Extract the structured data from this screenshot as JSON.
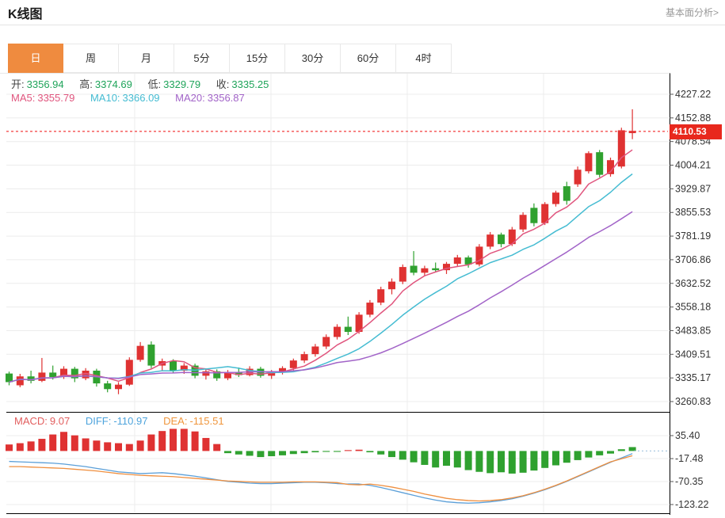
{
  "header": {
    "title": "K线图",
    "link": "基本面分析>"
  },
  "tabs": {
    "items": [
      {
        "label": "日",
        "active": true
      },
      {
        "label": "周",
        "active": false
      },
      {
        "label": "月",
        "active": false
      },
      {
        "label": "5分",
        "active": false
      },
      {
        "label": "15分",
        "active": false
      },
      {
        "label": "30分",
        "active": false
      },
      {
        "label": "60分",
        "active": false
      },
      {
        "label": "4时",
        "active": false
      }
    ]
  },
  "legend": {
    "ohlc": [
      {
        "label": "开:",
        "value": "3356.94"
      },
      {
        "label": "高:",
        "value": "3374.69"
      },
      {
        "label": "低:",
        "value": "3329.79"
      },
      {
        "label": "收:",
        "value": "3335.25"
      }
    ],
    "ma": [
      {
        "label": "MA5:",
        "value": "3355.79"
      },
      {
        "label": "MA10:",
        "value": "3366.09"
      },
      {
        "label": "MA20:",
        "value": "3356.87"
      }
    ],
    "macd": [
      {
        "label": "MACD:",
        "value": "9.07"
      },
      {
        "label": "DIFF:",
        "value": "-110.97"
      },
      {
        "label": "DEA:",
        "value": "-115.51"
      }
    ]
  },
  "colors": {
    "up": "#df3232",
    "down": "#2fa12f",
    "ma5": "#e0557e",
    "ma10": "#45bcd2",
    "ma20": "#a264c8",
    "diff": "#5b9fd8",
    "dea": "#ef8f3f",
    "tab_accent": "#ef8b3f",
    "price_line": "#f43b3b",
    "badge_bg": "#e8281d",
    "value_green": "#1fa45a",
    "grid": "#ececec",
    "axis_text": "#333333",
    "border": "#000000",
    "zero_dash": "#a9c9e2"
  },
  "chart_data": {
    "type": "candlestick+macd",
    "title": "K线图 日K",
    "legend_position": "top-left",
    "grid": true,
    "main": {
      "y_ticks": [
        4227.22,
        4152.88,
        4078.54,
        4004.21,
        3929.87,
        3855.53,
        3781.19,
        3706.86,
        3632.52,
        3558.18,
        3483.85,
        3409.51,
        3335.17,
        3260.83
      ],
      "ylim": [
        3203,
        4295
      ],
      "last_price": 4110.53,
      "last_price_label": "4110.53",
      "ma_periods": [
        5,
        10,
        20
      ],
      "candles_ohlc": [
        [
          3349,
          3355,
          3312,
          3322
        ],
        [
          3312,
          3348,
          3306,
          3340
        ],
        [
          3340,
          3358,
          3318,
          3326
        ],
        [
          3326,
          3398,
          3322,
          3352
        ],
        [
          3352,
          3374,
          3330,
          3338
        ],
        [
          3338,
          3372,
          3332,
          3364
        ],
        [
          3364,
          3370,
          3322,
          3334
        ],
        [
          3334,
          3366,
          3328,
          3358
        ],
        [
          3358,
          3364,
          3308,
          3318
        ],
        [
          3318,
          3326,
          3290,
          3300
        ],
        [
          3300,
          3322,
          3284,
          3314
        ],
        [
          3314,
          3400,
          3310,
          3392
        ],
        [
          3392,
          3448,
          3386,
          3436
        ],
        [
          3440,
          3450,
          3366,
          3374
        ],
        [
          3374,
          3396,
          3358,
          3388
        ],
        [
          3388,
          3394,
          3350,
          3358
        ],
        [
          3358,
          3382,
          3348,
          3374
        ],
        [
          3374,
          3380,
          3334,
          3342
        ],
        [
          3342,
          3364,
          3330,
          3356
        ],
        [
          3356,
          3362,
          3326,
          3334
        ],
        [
          3334,
          3360,
          3328,
          3352
        ],
        [
          3352,
          3368,
          3338,
          3344
        ],
        [
          3344,
          3372,
          3340,
          3364
        ],
        [
          3364,
          3370,
          3336,
          3342
        ],
        [
          3342,
          3360,
          3332,
          3354
        ],
        [
          3354,
          3372,
          3346,
          3366
        ],
        [
          3366,
          3396,
          3358,
          3390
        ],
        [
          3390,
          3418,
          3382,
          3410
        ],
        [
          3410,
          3442,
          3402,
          3434
        ],
        [
          3434,
          3472,
          3426,
          3464
        ],
        [
          3464,
          3504,
          3456,
          3496
        ],
        [
          3496,
          3528,
          3470,
          3480
        ],
        [
          3480,
          3542,
          3474,
          3534
        ],
        [
          3534,
          3580,
          3526,
          3572
        ],
        [
          3572,
          3622,
          3564,
          3614
        ],
        [
          3614,
          3648,
          3598,
          3638
        ],
        [
          3638,
          3692,
          3630,
          3684
        ],
        [
          3688,
          3734,
          3658,
          3666
        ],
        [
          3666,
          3688,
          3656,
          3680
        ],
        [
          3680,
          3698,
          3668,
          3674
        ],
        [
          3674,
          3700,
          3662,
          3694
        ],
        [
          3694,
          3722,
          3686,
          3714
        ],
        [
          3714,
          3720,
          3682,
          3692
        ],
        [
          3692,
          3756,
          3686,
          3748
        ],
        [
          3748,
          3794,
          3740,
          3786
        ],
        [
          3786,
          3792,
          3746,
          3756
        ],
        [
          3756,
          3810,
          3750,
          3802
        ],
        [
          3802,
          3856,
          3794,
          3848
        ],
        [
          3870,
          3884,
          3812,
          3822
        ],
        [
          3822,
          3888,
          3816,
          3882
        ],
        [
          3882,
          3924,
          3874,
          3918
        ],
        [
          3938,
          3952,
          3880,
          3892
        ],
        [
          3944,
          4000,
          3936,
          3990
        ],
        [
          3985,
          4048,
          3978,
          4042
        ],
        [
          4045,
          4052,
          3966,
          3974
        ],
        [
          3976,
          4028,
          3968,
          4020
        ],
        [
          4000,
          4122,
          3994,
          4114
        ],
        [
          4105,
          4180,
          4086,
          4112
        ]
      ]
    },
    "macd": {
      "y_ticks": [
        35.4,
        -17.48,
        -70.35,
        -123.22
      ],
      "histogram": [
        15,
        18,
        22,
        28,
        38,
        44,
        36,
        29,
        24,
        20,
        18,
        16,
        24,
        38,
        46,
        51,
        51,
        45,
        30,
        16,
        -5,
        -8,
        -11,
        -14,
        -12,
        -10,
        -7,
        -5,
        -3,
        -2,
        -2,
        2,
        3,
        -3,
        -8,
        -14,
        -20,
        -26,
        -32,
        -38,
        -34,
        -38,
        -44,
        -48,
        -51,
        -49,
        -52,
        -50,
        -45,
        -39,
        -33,
        -27,
        -21,
        -15,
        -10,
        -6,
        4,
        9
      ],
      "histogram_colors": "rrrrrrrrrrrrrrrrrrrrgggggggggggrrggggggggggggggggggggggggg",
      "diff": [
        -24,
        -25,
        -26,
        -27,
        -28,
        -30,
        -33,
        -36,
        -40,
        -44,
        -48,
        -50,
        -52,
        -51,
        -50,
        -52,
        -55,
        -58,
        -62,
        -66,
        -70,
        -72,
        -74,
        -75,
        -75,
        -74,
        -73,
        -72,
        -72,
        -73,
        -75,
        -76,
        -76,
        -79,
        -84,
        -90,
        -96,
        -102,
        -108,
        -113,
        -117,
        -119,
        -120,
        -119,
        -117,
        -114,
        -110,
        -104,
        -97,
        -89,
        -80,
        -70,
        -59,
        -48,
        -37,
        -26,
        -16,
        -6
      ],
      "dea": [
        -36,
        -36,
        -37,
        -38,
        -39,
        -40,
        -42,
        -44,
        -46,
        -49,
        -52,
        -54,
        -56,
        -57,
        -58,
        -59,
        -61,
        -63,
        -65,
        -67,
        -69,
        -70,
        -71,
        -72,
        -72,
        -72,
        -71,
        -71,
        -71,
        -72,
        -73,
        -77,
        -78,
        -76,
        -79,
        -83,
        -88,
        -93,
        -99,
        -104,
        -109,
        -112,
        -114,
        -115,
        -114,
        -112,
        -108,
        -103,
        -96,
        -88,
        -79,
        -69,
        -58,
        -47,
        -36,
        -25,
        -18,
        -11
      ]
    }
  }
}
